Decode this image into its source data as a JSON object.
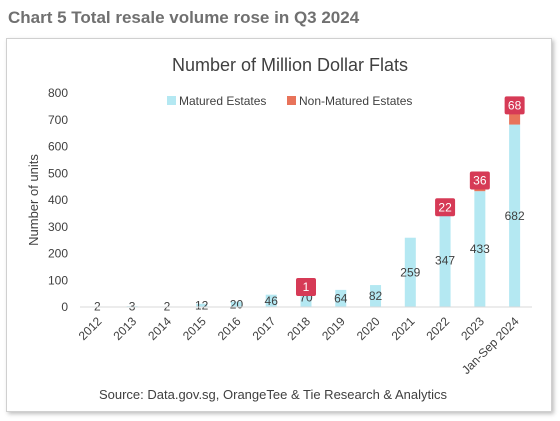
{
  "page": {
    "heading": "Chart 5 Total resale volume rose in Q3 2024"
  },
  "chart_data": {
    "type": "bar",
    "stacked": true,
    "title": "Number of Million Dollar Flats",
    "xlabel": "",
    "ylabel": "Number of units",
    "ylim": [
      0,
      800
    ],
    "yticks": [
      0,
      100,
      200,
      300,
      400,
      500,
      600,
      700,
      800
    ],
    "grid": false,
    "legend_position": "top",
    "categories": [
      "2012",
      "2013",
      "2014",
      "2015",
      "2016",
      "2017",
      "2018",
      "2019",
      "2020",
      "2021",
      "2022",
      "2023",
      "Jan-Sep 2024"
    ],
    "series": [
      {
        "name": "Matured Estates",
        "color": "#b4e8f2",
        "values": [
          2,
          3,
          2,
          12,
          20,
          46,
          70,
          64,
          82,
          259,
          347,
          433,
          682
        ],
        "labels": [
          "2",
          "3",
          "2",
          "12",
          "20",
          "46",
          "70",
          "64",
          "82",
          "259",
          "347",
          "433",
          "682"
        ]
      },
      {
        "name": "Non-Matured Estates",
        "color": "#e8735a",
        "label_box_color": "#d63a56",
        "values": [
          0,
          0,
          0,
          0,
          0,
          0,
          1,
          0,
          0,
          0,
          22,
          36,
          68
        ],
        "labels": [
          "",
          "",
          "",
          "",
          "",
          "",
          "1",
          "",
          "",
          "",
          "22",
          "36",
          "68"
        ]
      }
    ],
    "source": "Source: Data.gov.sg, OrangeTee & Tie Research & Analytics"
  }
}
